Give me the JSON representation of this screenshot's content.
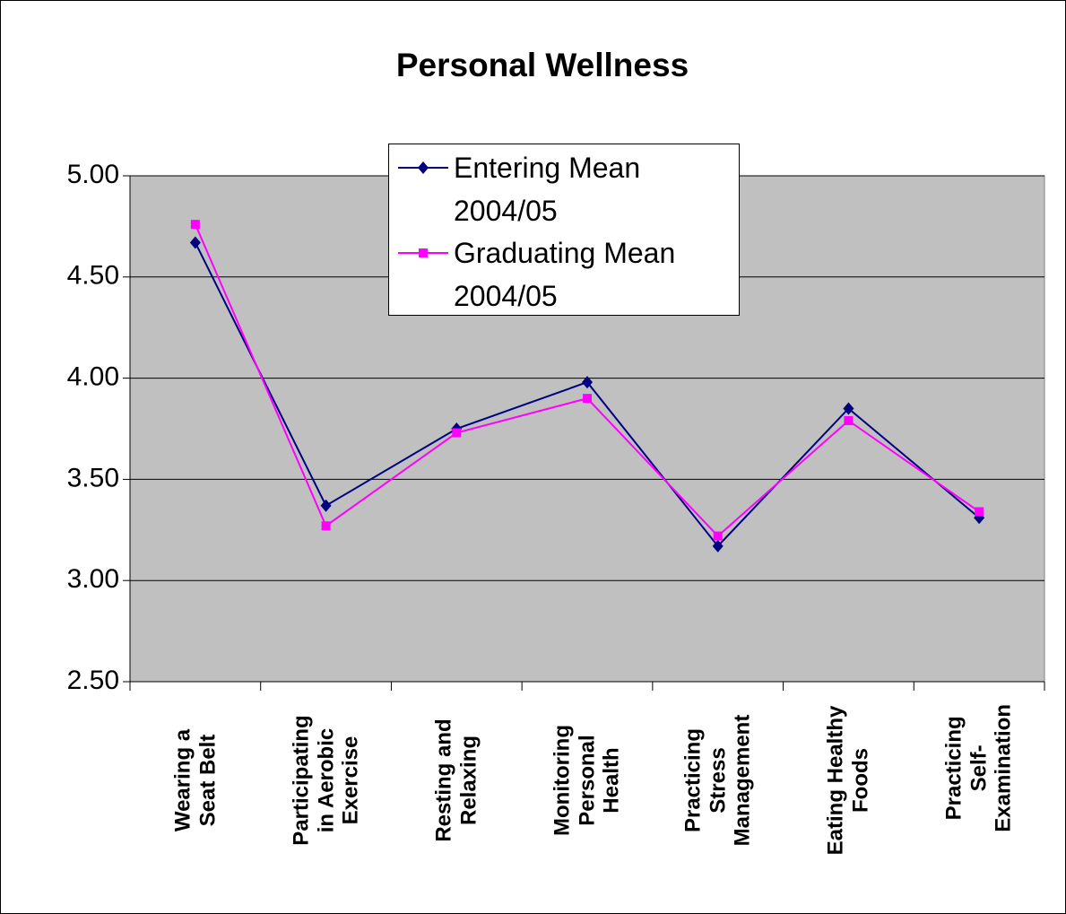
{
  "chart_data": {
    "type": "line",
    "title": "Personal Wellness",
    "categories": [
      "Wearing a Seat Belt",
      "Participating in Aerobic Exercise",
      "Resting and Relaxing",
      "Monitoring Personal Health",
      "Practicing Stress Management",
      "Eating Healthy Foods",
      "Practicing Self-Examination"
    ],
    "series": [
      {
        "name": "Entering Mean 2004/05",
        "color": "#000080",
        "marker": "diamond",
        "values": [
          4.67,
          3.37,
          3.75,
          3.98,
          3.17,
          3.85,
          3.31
        ]
      },
      {
        "name": "Graduating Mean 2004/05",
        "color": "#ff00ff",
        "marker": "square",
        "values": [
          4.76,
          3.27,
          3.73,
          3.9,
          3.22,
          3.79,
          3.34
        ]
      }
    ],
    "ylim": [
      2.5,
      5
    ],
    "yticks": [
      {
        "value": 2.5,
        "label": "2.50"
      },
      {
        "value": 3,
        "label": "3.00"
      },
      {
        "value": 3.5,
        "label": "3.50"
      },
      {
        "value": 4,
        "label": "4.00"
      },
      {
        "value": 4.5,
        "label": "4.50"
      },
      {
        "value": 5,
        "label": "5.00"
      }
    ],
    "grid": true,
    "legend": "top"
  }
}
